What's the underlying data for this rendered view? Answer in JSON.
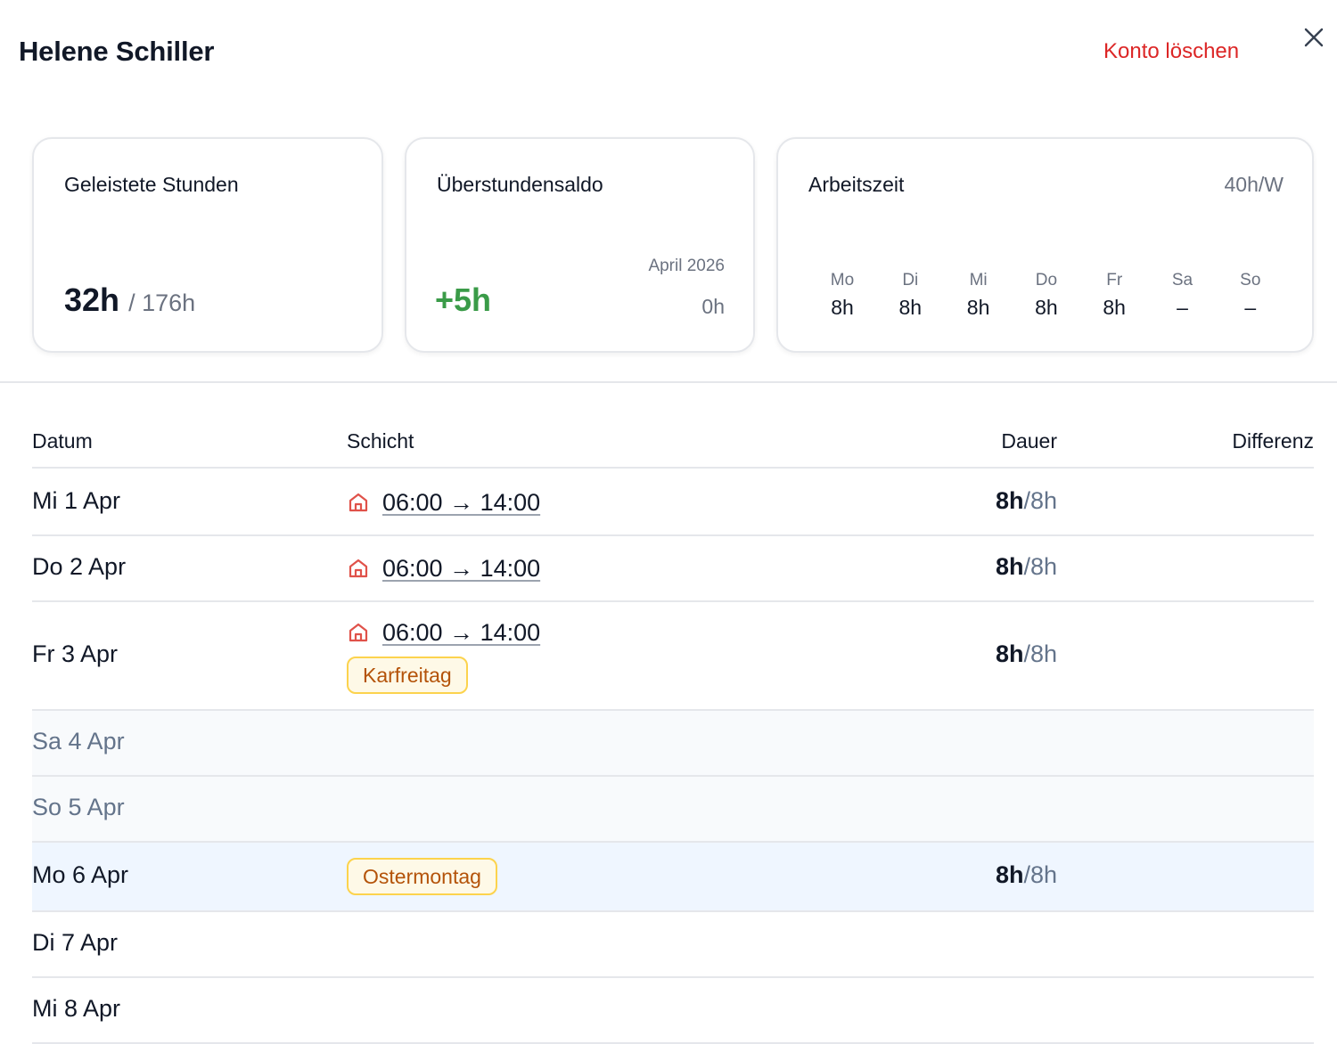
{
  "header": {
    "title": "Helene Schiller",
    "delete_label": "Konto löschen",
    "close_icon": "close-icon"
  },
  "cards": {
    "worked": {
      "label": "Geleistete Stunden",
      "value": "32h",
      "total": "/ 176h"
    },
    "overtime": {
      "label": "Überstundensaldo",
      "value": "+5h",
      "period": "April 2026",
      "period_value": "0h",
      "value_color": "#3a9b48"
    },
    "schedule": {
      "label": "Arbeitszeit",
      "weekly": "40h/W",
      "days": [
        {
          "name": "Mo",
          "hours": "8h"
        },
        {
          "name": "Di",
          "hours": "8h"
        },
        {
          "name": "Mi",
          "hours": "8h"
        },
        {
          "name": "Do",
          "hours": "8h"
        },
        {
          "name": "Fr",
          "hours": "8h"
        },
        {
          "name": "Sa",
          "hours": "–"
        },
        {
          "name": "So",
          "hours": "–"
        }
      ]
    }
  },
  "table": {
    "columns": [
      "Datum",
      "Schicht",
      "Dauer",
      "Differenz"
    ],
    "rows": [
      {
        "date": "Mi 1 Apr",
        "shift": "06:00 → 14:00",
        "worked": "8h",
        "planned": "/8h"
      },
      {
        "date": "Do 2 Apr",
        "shift": "06:00 → 14:00",
        "worked": "8h",
        "planned": "/8h"
      },
      {
        "date": "Fr 3 Apr",
        "shift": "06:00 → 14:00",
        "holiday": "Karfreitag",
        "worked": "8h",
        "planned": "/8h"
      },
      {
        "date": "Sa 4 Apr"
      },
      {
        "date": "So 5 Apr"
      },
      {
        "date": "Mo 6 Apr",
        "holiday": "Ostermontag",
        "worked": "8h",
        "planned": "/8h"
      },
      {
        "date": "Di 7 Apr"
      },
      {
        "date": "Mi 8 Apr"
      }
    ]
  },
  "colors": {
    "danger": "#dc2626",
    "positive": "#3a9b48",
    "holiday_bg": "#fef9e7",
    "holiday_border": "#fcd34d",
    "holiday_text": "#b45309",
    "home_icon": "#e0524a"
  }
}
